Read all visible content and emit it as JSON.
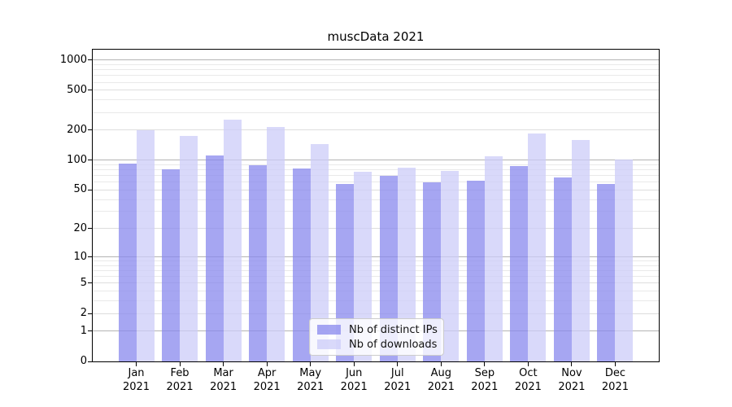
{
  "chart_data": {
    "type": "bar",
    "title": "muscData 2021",
    "categories": [
      "Jan",
      "Feb",
      "Mar",
      "Apr",
      "May",
      "Jun",
      "Jul",
      "Aug",
      "Sep",
      "Oct",
      "Nov",
      "Dec"
    ],
    "x_year": "2021",
    "series": [
      {
        "name": "Nb of distinct IPs",
        "color": "#8888ee",
        "values": [
          93,
          81,
          111,
          89,
          82,
          58,
          70,
          60,
          62,
          87,
          67,
          57
        ]
      },
      {
        "name": "Nb of downloads",
        "color": "#ccccf8",
        "values": [
          199,
          176,
          253,
          215,
          145,
          77,
          84,
          78,
          110,
          185,
          159,
          101
        ]
      }
    ],
    "xlabel": "",
    "ylabel": "",
    "yscale": "log1p",
    "ylim": [
      0,
      1270
    ],
    "yticks": [
      0,
      1,
      2,
      5,
      10,
      20,
      50,
      100,
      200,
      500,
      1000
    ],
    "ytick_decades": [
      1,
      10,
      100,
      1000
    ],
    "yminor_gridlines": [
      3,
      4,
      6,
      7,
      8,
      9,
      30,
      40,
      60,
      70,
      80,
      90,
      300,
      400,
      600,
      700,
      800,
      900
    ],
    "grid": "on",
    "legend_position": "lower-center-inside"
  },
  "colors": {
    "background": "#ffffff",
    "axis": "#000000",
    "grid_major": "#b3b3b3",
    "grid_sub": "#dddddd",
    "grid_minor": "#e9e9e9",
    "text": "#000000"
  }
}
